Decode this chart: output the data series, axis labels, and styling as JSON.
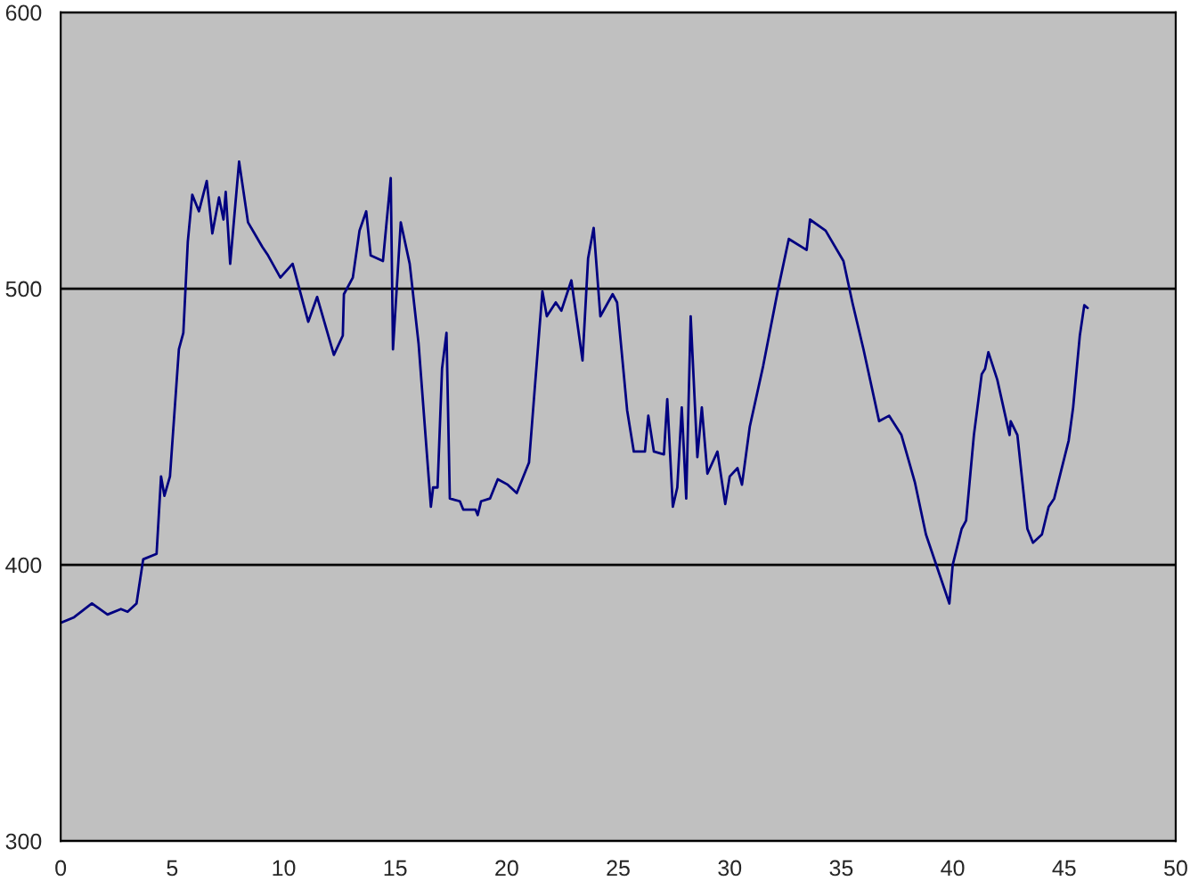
{
  "chart_data": {
    "type": "line",
    "xlim": [
      0,
      50
    ],
    "ylim": [
      300,
      600
    ],
    "xticks": [
      0,
      5,
      10,
      15,
      20,
      25,
      30,
      35,
      40,
      45,
      50
    ],
    "yticks": [
      300,
      400,
      500,
      600
    ],
    "grid": "y",
    "marker": "none",
    "line_style": "solid",
    "series": [
      {
        "color": "#000080",
        "x": [
          0,
          0.6,
          1.4,
          2.1,
          2.7,
          3.0,
          3.4,
          3.7,
          4.3,
          4.5,
          4.65,
          4.9,
          5.3,
          5.5,
          5.7,
          5.9,
          6.2,
          6.55,
          6.8,
          7.1,
          7.3,
          7.4,
          7.6,
          8.0,
          8.4,
          9.05,
          9.3,
          9.85,
          10.4,
          11.1,
          11.5,
          12.25,
          12.65,
          12.7,
          13.1,
          13.4,
          13.7,
          13.9,
          14.45,
          14.8,
          14.9,
          15.25,
          15.65,
          16.05,
          16.6,
          16.7,
          16.9,
          17.1,
          17.3,
          17.45,
          17.9,
          18.05,
          18.6,
          18.7,
          18.85,
          19.25,
          19.6,
          20.05,
          20.45,
          21.0,
          21.25,
          21.6,
          21.8,
          22.2,
          22.45,
          22.9,
          23.4,
          23.65,
          23.9,
          24.2,
          24.75,
          24.95,
          25.4,
          25.7,
          26.2,
          26.35,
          26.6,
          27.05,
          27.2,
          27.45,
          27.65,
          27.85,
          28.05,
          28.25,
          28.55,
          28.75,
          29.0,
          29.45,
          29.8,
          30.0,
          30.35,
          30.55,
          30.9,
          31.5,
          32.15,
          32.65,
          33.45,
          33.6,
          34.3,
          35.1,
          35.5,
          36.0,
          36.7,
          37.15,
          37.7,
          38.3,
          38.8,
          39.85,
          40.0,
          40.4,
          40.6,
          40.95,
          41.3,
          41.45,
          41.6,
          42.0,
          42.55,
          42.6,
          42.9,
          43.35,
          43.6,
          44.0,
          44.3,
          44.55,
          45.2,
          45.4,
          45.7,
          45.9,
          46.05
        ],
        "values": [
          379,
          381,
          386,
          382,
          384,
          383,
          386,
          402,
          404,
          432,
          425,
          432,
          478,
          484,
          517,
          534,
          528,
          539,
          520,
          533,
          525,
          535,
          509,
          546,
          524,
          515,
          512,
          504,
          509,
          488,
          497,
          476,
          483,
          498,
          504,
          521,
          528,
          512,
          510,
          540,
          478,
          524,
          509,
          480,
          421,
          428,
          428,
          471,
          484,
          424,
          423,
          420,
          420,
          418,
          423,
          424,
          431,
          429,
          426,
          437,
          463,
          499,
          490,
          495,
          492,
          503,
          474,
          511,
          522,
          490,
          498,
          495,
          456,
          441,
          441,
          454,
          441,
          440,
          460,
          421,
          428,
          457,
          424,
          490,
          439,
          457,
          433,
          441,
          422,
          432,
          435,
          429,
          450,
          472,
          499,
          518,
          514,
          525,
          521,
          510,
          495,
          478,
          452,
          454,
          447,
          430,
          411,
          386,
          400,
          413,
          416,
          447,
          469,
          471,
          477,
          467,
          447,
          452,
          447,
          413,
          408,
          411,
          421,
          424,
          445,
          457,
          483,
          494,
          493
        ]
      }
    ]
  }
}
